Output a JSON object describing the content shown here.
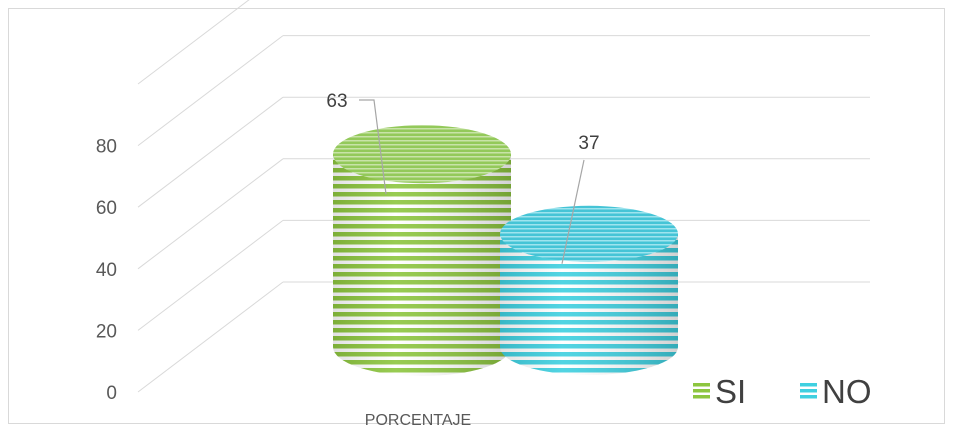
{
  "chart_data": {
    "type": "bar",
    "style": "3d-cylinder",
    "categories": [
      "PORCENTAJE"
    ],
    "series": [
      {
        "name": "SI",
        "values": [
          63
        ],
        "color": "#8dc63f"
      },
      {
        "name": "NO",
        "values": [
          37
        ],
        "color": "#3fd0e0"
      }
    ],
    "ylim": [
      0,
      100
    ],
    "yticks": [
      0,
      20,
      40,
      60,
      80
    ],
    "grid": true,
    "legend": "bottom-right",
    "data_labels": [
      "63",
      "37"
    ]
  }
}
